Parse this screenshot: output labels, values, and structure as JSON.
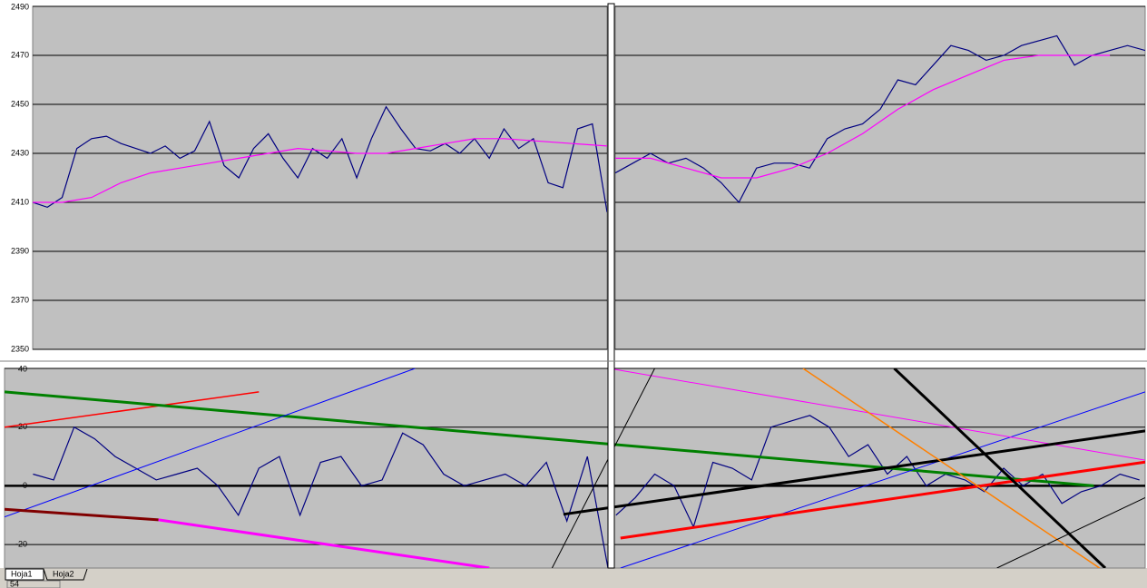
{
  "chart_data": [
    {
      "type": "line",
      "ylim": [
        2350,
        2490
      ],
      "yticks": [
        2350,
        2370,
        2390,
        2410,
        2430,
        2450,
        2470,
        2490
      ],
      "xlim": [
        0,
        39
      ],
      "grid": true,
      "show_tick_labels": true,
      "series": [
        {
          "color": "#000080",
          "line_width": 1.2,
          "x": [
            0,
            1,
            2,
            3,
            4,
            5,
            6,
            7,
            8,
            9,
            10,
            11,
            12,
            13,
            14,
            15,
            16,
            17,
            18,
            19,
            20,
            21,
            22,
            23,
            24,
            25,
            26,
            27,
            28,
            29,
            30,
            31,
            32,
            33,
            34,
            35,
            36,
            37,
            38,
            39
          ],
          "values": [
            2410,
            2408,
            2412,
            2432,
            2436,
            2437,
            2434,
            2432,
            2430,
            2433,
            2428,
            2431,
            2443,
            2425,
            2420,
            2432,
            2438,
            2428,
            2420,
            2432,
            2428,
            2436,
            2420,
            2436,
            2449,
            2440,
            2432,
            2431,
            2434,
            2430,
            2436,
            2428,
            2440,
            2432,
            2436,
            2418,
            2416,
            2440,
            2442,
            2406
          ]
        },
        {
          "color": "#ff00ff",
          "line_width": 1.2,
          "x": [
            0,
            2,
            4,
            6,
            8,
            10,
            12,
            14,
            16,
            18,
            20,
            22,
            24,
            26,
            28,
            30,
            32,
            39
          ],
          "values": [
            2410,
            2410,
            2412,
            2418,
            2422,
            2424,
            2426,
            2428,
            2430,
            2432,
            2431,
            2430,
            2430,
            2432,
            2434,
            2436,
            2436,
            2433
          ]
        }
      ]
    },
    {
      "type": "line",
      "ylim": [
        2350,
        2490
      ],
      "yticks": [
        2350,
        2370,
        2390,
        2410,
        2430,
        2450,
        2470,
        2490
      ],
      "xlim": [
        0,
        30
      ],
      "grid": true,
      "show_tick_labels": false,
      "series": [
        {
          "color": "#000080",
          "line_width": 1.2,
          "x": [
            0,
            1,
            2,
            3,
            4,
            5,
            6,
            7,
            8,
            9,
            10,
            11,
            12,
            13,
            14,
            15,
            16,
            17,
            18,
            19,
            20,
            21,
            22,
            23,
            24,
            25,
            26,
            27,
            28,
            29,
            30
          ],
          "values": [
            2422,
            2426,
            2430,
            2426,
            2428,
            2424,
            2418,
            2410,
            2424,
            2426,
            2426,
            2424,
            2436,
            2440,
            2442,
            2448,
            2460,
            2458,
            2466,
            2474,
            2472,
            2468,
            2470,
            2474,
            2476,
            2478,
            2466,
            2470,
            2472,
            2474,
            2472
          ]
        },
        {
          "color": "#ff00ff",
          "line_width": 1.2,
          "x": [
            0,
            2,
            4,
            6,
            8,
            10,
            12,
            14,
            16,
            18,
            20,
            22,
            24,
            26,
            28
          ],
          "values": [
            2428,
            2428,
            2424,
            2420,
            2420,
            2424,
            2430,
            2438,
            2448,
            2456,
            2462,
            2468,
            2470,
            2470,
            2470
          ]
        }
      ]
    },
    {
      "type": "line",
      "ylim": [
        -28,
        40
      ],
      "yticks": [
        40,
        20,
        0,
        -20
      ],
      "xlim": [
        0,
        100
      ],
      "grid": true,
      "show_tick_labels": true,
      "zero_line": true,
      "series": [
        {
          "color": "#000080",
          "line_width": 1.2,
          "x": [
            2.5,
            4.3,
            6.1,
            7.9,
            9.7,
            11.5,
            13.3,
            15.1,
            16.9,
            18.7,
            20.5,
            22.3,
            24.1,
            25.9,
            27.7,
            29.5,
            31.3,
            33.1,
            34.9,
            36.7,
            38.5,
            40.3,
            42.1,
            43.9,
            45.7,
            47.5,
            49.3,
            51.1,
            52.9
          ],
          "values": [
            4,
            2,
            20,
            16,
            10,
            6,
            2,
            4,
            6,
            0,
            -10,
            6,
            10,
            -10,
            8,
            10,
            0,
            2,
            18,
            14,
            4,
            0,
            2,
            4,
            0,
            8,
            -12,
            10,
            -28
          ]
        },
        {
          "color": "#000080",
          "line_width": 1.2,
          "x": [
            53.6,
            55.3,
            57,
            58.7,
            60.4,
            62.1,
            63.8,
            65.5,
            67.2,
            68.9,
            70.6,
            72.3,
            74,
            75.7,
            77.4,
            79.1,
            80.8,
            82.5,
            84.2,
            85.9,
            87.6,
            89.3,
            91,
            92.7,
            94.4,
            96.1,
            97.8,
            99.5
          ],
          "values": [
            -10,
            -4,
            4,
            0,
            -14,
            8,
            6,
            2,
            20,
            22,
            24,
            20,
            10,
            14,
            4,
            10,
            0,
            4,
            2,
            -2,
            6,
            0,
            4,
            -6,
            -2,
            0,
            4,
            2
          ]
        },
        {
          "color": "#ff0000",
          "line_width": 1.5,
          "x": [
            0,
            22.3
          ],
          "values": [
            20,
            32
          ]
        },
        {
          "color": "#008000",
          "line_width": 3,
          "x": [
            0,
            95.5
          ],
          "values": [
            32,
            0
          ]
        },
        {
          "color": "#0000ff",
          "line_width": 1,
          "x": [
            0,
            36
          ],
          "values": [
            -10.6,
            40
          ]
        },
        {
          "color": "#0000ff",
          "line_width": 1,
          "x": [
            54,
            100
          ],
          "values": [
            -28,
            32
          ]
        },
        {
          "color": "#800000",
          "line_width": 3,
          "x": [
            0,
            13.5
          ],
          "values": [
            -8,
            -11.6
          ]
        },
        {
          "color": "#ff00ff",
          "line_width": 3,
          "x": [
            13.5,
            42.5
          ],
          "values": [
            -11.6,
            -28
          ]
        },
        {
          "color": "#ff00ff",
          "line_width": 1,
          "x": [
            53,
            100
          ],
          "values": [
            40,
            8.75
          ]
        },
        {
          "color": "#000000",
          "line_width": 3,
          "x": [
            49,
            100
          ],
          "values": [
            -9.7,
            18.75
          ]
        },
        {
          "color": "#ff0000",
          "line_width": 3,
          "x": [
            54,
            100
          ],
          "values": [
            -17.8,
            8.1
          ]
        },
        {
          "color": "#ff8000",
          "line_width": 1.5,
          "x": [
            70,
            96
          ],
          "values": [
            40,
            -28
          ]
        },
        {
          "color": "#000000",
          "line_width": 3,
          "x": [
            78,
            96.5
          ],
          "values": [
            40,
            -28
          ]
        },
        {
          "color": "#000000",
          "line_width": 1,
          "x": [
            48,
            57
          ],
          "values": [
            -28,
            40
          ]
        },
        {
          "color": "#000000",
          "line_width": 1,
          "x": [
            87,
            100
          ],
          "values": [
            -28,
            -4
          ]
        }
      ]
    }
  ],
  "sheet_tabs": [
    "Hoja1",
    "Hoja2"
  ],
  "status": "54"
}
